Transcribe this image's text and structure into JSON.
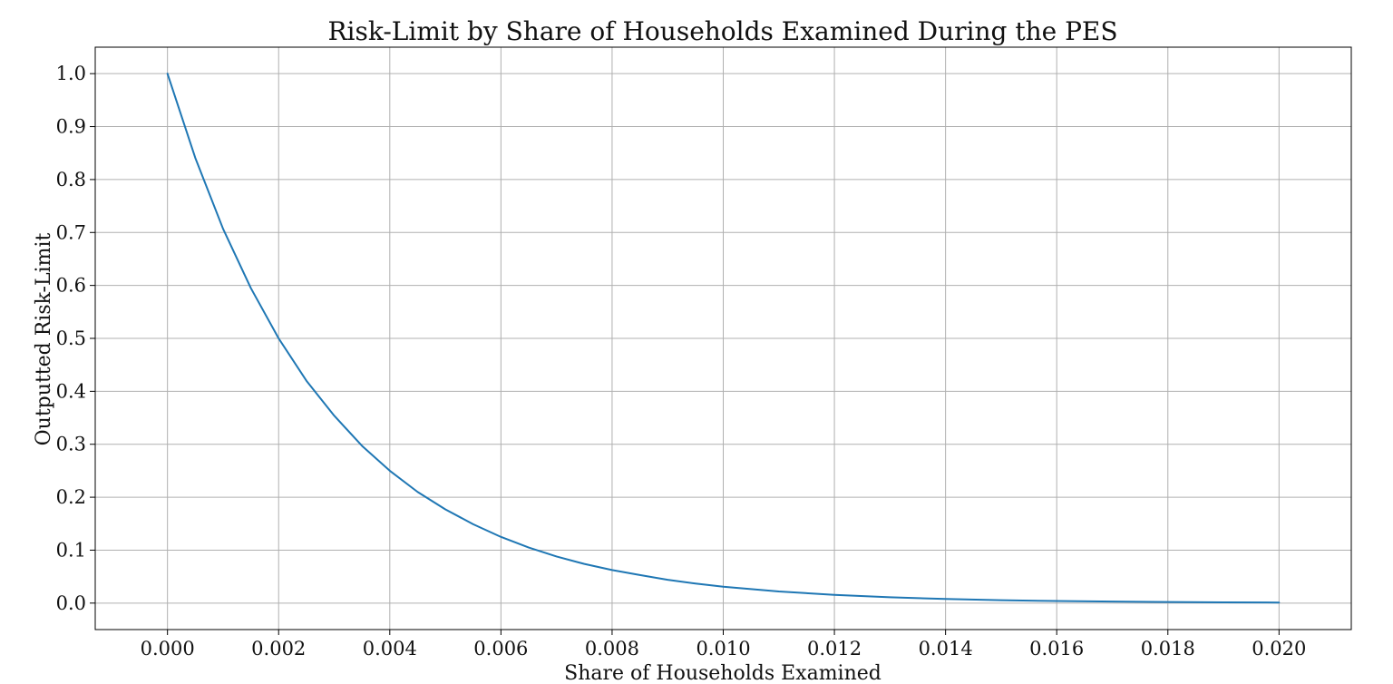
{
  "chart_data": {
    "type": "line",
    "title": "Risk-Limit by Share of Households Examined During the PES",
    "xlabel": "Share of Households Examined",
    "ylabel": "Outputted Risk-Limit",
    "xlim": [
      -0.0013,
      0.0213
    ],
    "ylim": [
      -0.05,
      1.05
    ],
    "xticks": [
      0.0,
      0.002,
      0.004,
      0.006,
      0.008,
      0.01,
      0.012,
      0.014,
      0.016,
      0.018,
      0.02
    ],
    "xtick_labels": [
      "0.000",
      "0.002",
      "0.004",
      "0.006",
      "0.008",
      "0.010",
      "0.012",
      "0.014",
      "0.016",
      "0.018",
      "0.020"
    ],
    "yticks": [
      0.0,
      0.1,
      0.2,
      0.3,
      0.4,
      0.5,
      0.6,
      0.7,
      0.8,
      0.9,
      1.0
    ],
    "ytick_labels": [
      "0.0",
      "0.1",
      "0.2",
      "0.3",
      "0.4",
      "0.5",
      "0.6",
      "0.7",
      "0.8",
      "0.9",
      "1.0"
    ],
    "grid": true,
    "series": [
      {
        "color": "#1f77b4",
        "x": [
          0.0,
          0.0005,
          0.001,
          0.0015,
          0.002,
          0.0025,
          0.003,
          0.0035,
          0.004,
          0.0045,
          0.005,
          0.0055,
          0.006,
          0.0065,
          0.007,
          0.0075,
          0.008,
          0.0085,
          0.009,
          0.0095,
          0.01,
          0.011,
          0.012,
          0.013,
          0.014,
          0.015,
          0.016,
          0.017,
          0.018,
          0.019,
          0.02
        ],
        "y": [
          1.0,
          0.841,
          0.707,
          0.595,
          0.5,
          0.42,
          0.354,
          0.297,
          0.25,
          0.21,
          0.177,
          0.149,
          0.125,
          0.105,
          0.088,
          0.074,
          0.0625,
          0.053,
          0.044,
          0.037,
          0.031,
          0.022,
          0.0156,
          0.011,
          0.0078,
          0.0055,
          0.0039,
          0.0028,
          0.002,
          0.0014,
          0.001
        ]
      }
    ]
  }
}
